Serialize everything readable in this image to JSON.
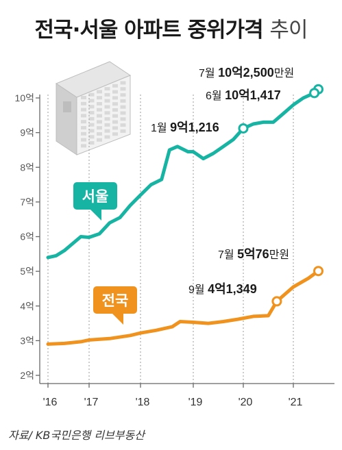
{
  "title": "전국·서울 아파트 중위가격",
  "title_suffix": "추이",
  "source": "자료/ KB국민은행 리브부동산",
  "chart_data": {
    "type": "line",
    "title": "전국·서울 아파트 중위가격 추이",
    "ylabel": "",
    "xlabel": "",
    "ylim": [
      2,
      10.6
    ],
    "y_ticks": [
      2,
      3,
      4,
      5,
      6,
      7,
      8,
      9,
      10
    ],
    "y_tick_labels": [
      "2억",
      "3억",
      "4억",
      "5억",
      "6억",
      "7억",
      "8억",
      "9억",
      "10억"
    ],
    "x_ticks": [
      2016,
      2017,
      2018,
      2019,
      2020,
      2021
    ],
    "x_tick_labels": [
      "'16",
      "'17",
      "'18",
      "'19",
      "'20",
      "'21"
    ],
    "grid": "vertical dotted",
    "series": [
      {
        "name": "서울",
        "color": "#17b3a3",
        "points": [
          [
            2016.0,
            5.4
          ],
          [
            2016.2,
            5.45
          ],
          [
            2016.4,
            5.6
          ],
          [
            2016.6,
            5.8
          ],
          [
            2016.8,
            6.0
          ],
          [
            2017.0,
            5.98
          ],
          [
            2017.2,
            6.08
          ],
          [
            2017.4,
            6.4
          ],
          [
            2017.6,
            6.55
          ],
          [
            2017.8,
            6.9
          ],
          [
            2018.0,
            7.2
          ],
          [
            2018.2,
            7.5
          ],
          [
            2018.4,
            7.65
          ],
          [
            2018.55,
            8.5
          ],
          [
            2018.7,
            8.6
          ],
          [
            2018.9,
            8.45
          ],
          [
            2019.0,
            8.45
          ],
          [
            2019.2,
            8.25
          ],
          [
            2019.4,
            8.4
          ],
          [
            2019.6,
            8.6
          ],
          [
            2019.8,
            8.8
          ],
          [
            2020.0,
            9.1216
          ],
          [
            2020.2,
            9.25
          ],
          [
            2020.4,
            9.3
          ],
          [
            2020.6,
            9.3
          ],
          [
            2020.8,
            9.55
          ],
          [
            2021.0,
            9.8
          ],
          [
            2021.2,
            10.0
          ],
          [
            2021.42,
            10.1417
          ],
          [
            2021.5,
            10.25
          ]
        ]
      },
      {
        "name": "전국",
        "color": "#f0921e",
        "points": [
          [
            2016.0,
            2.9
          ],
          [
            2016.4,
            2.92
          ],
          [
            2016.8,
            2.97
          ],
          [
            2017.0,
            3.02
          ],
          [
            2017.4,
            3.06
          ],
          [
            2017.8,
            3.15
          ],
          [
            2018.0,
            3.22
          ],
          [
            2018.3,
            3.3
          ],
          [
            2018.6,
            3.4
          ],
          [
            2018.75,
            3.55
          ],
          [
            2019.0,
            3.53
          ],
          [
            2019.3,
            3.5
          ],
          [
            2019.6,
            3.55
          ],
          [
            2019.9,
            3.62
          ],
          [
            2020.2,
            3.7
          ],
          [
            2020.5,
            3.72
          ],
          [
            2020.67,
            4.1349
          ],
          [
            2020.8,
            4.3
          ],
          [
            2021.0,
            4.55
          ],
          [
            2021.3,
            4.8
          ],
          [
            2021.5,
            5.0076
          ]
        ]
      }
    ],
    "annotations": [
      {
        "series": "서울",
        "point": [
          2020.0,
          9.1216
        ],
        "month": "1월",
        "big": "9억",
        "small": "1,216",
        "unit": ""
      },
      {
        "series": "서울",
        "point": [
          2021.42,
          10.1417
        ],
        "month": "6월",
        "big": "10억",
        "small": "1,417",
        "unit": ""
      },
      {
        "series": "서울",
        "point": [
          2021.5,
          10.25
        ],
        "month": "7월",
        "big": "10억",
        "small": "2,500",
        "unit": "만원"
      },
      {
        "series": "전국",
        "point": [
          2020.67,
          4.1349
        ],
        "month": "9월",
        "big": "4억",
        "small": "1,349",
        "unit": ""
      },
      {
        "series": "전국",
        "point": [
          2021.5,
          5.0076
        ],
        "month": "7월",
        "big": "5억",
        "small": "76",
        "unit": "만원"
      }
    ],
    "series_labels": [
      {
        "text": "서울",
        "color": "#17b3a3"
      },
      {
        "text": "전국",
        "color": "#f0921e"
      }
    ]
  }
}
